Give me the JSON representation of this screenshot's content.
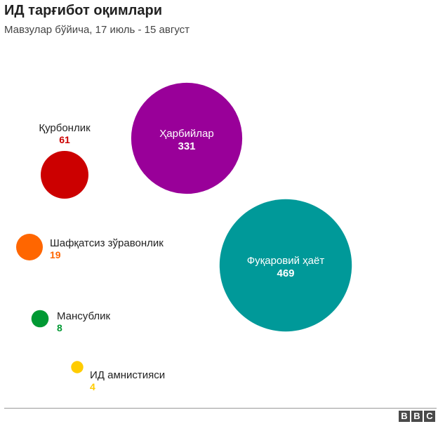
{
  "header": {
    "title": "ИД тарғибот оқимлари",
    "subtitle": "Мавзулар бўйича, 17 июль - 15 август"
  },
  "footer": {
    "logo_letters": [
      "B",
      "B",
      "C"
    ]
  },
  "chart_data": {
    "type": "bubble",
    "title": "ИД тарғибот оқимлари",
    "subtitle": "Мавзулар бўйича, 17 июль - 15 август",
    "categories": [
      "Ҳарбийлар",
      "Фуқаровий ҳаёт",
      "Қурбонлик",
      "Шафқатсиз зўравонлик",
      "Мансублик",
      "ИД амнистияси"
    ],
    "values": [
      331,
      469,
      61,
      19,
      8,
      4
    ],
    "series": [
      {
        "name": "Ҳарбийлар",
        "value": 331,
        "color": "#990099",
        "label_inside": true
      },
      {
        "name": "Фуқаровий ҳаёт",
        "value": 469,
        "color": "#009999",
        "label_inside": true
      },
      {
        "name": "Қурбонлик",
        "value": 61,
        "color": "#cc0000",
        "label_inside": false
      },
      {
        "name": "Шафқатсиз зўравонлик",
        "value": 19,
        "color": "#ff6600",
        "label_inside": false
      },
      {
        "name": "Мансублик",
        "value": 8,
        "color": "#009933",
        "label_inside": false
      },
      {
        "name": "ИД амнистияси",
        "value": 4,
        "color": "#ffcc00",
        "label_inside": false
      }
    ]
  }
}
